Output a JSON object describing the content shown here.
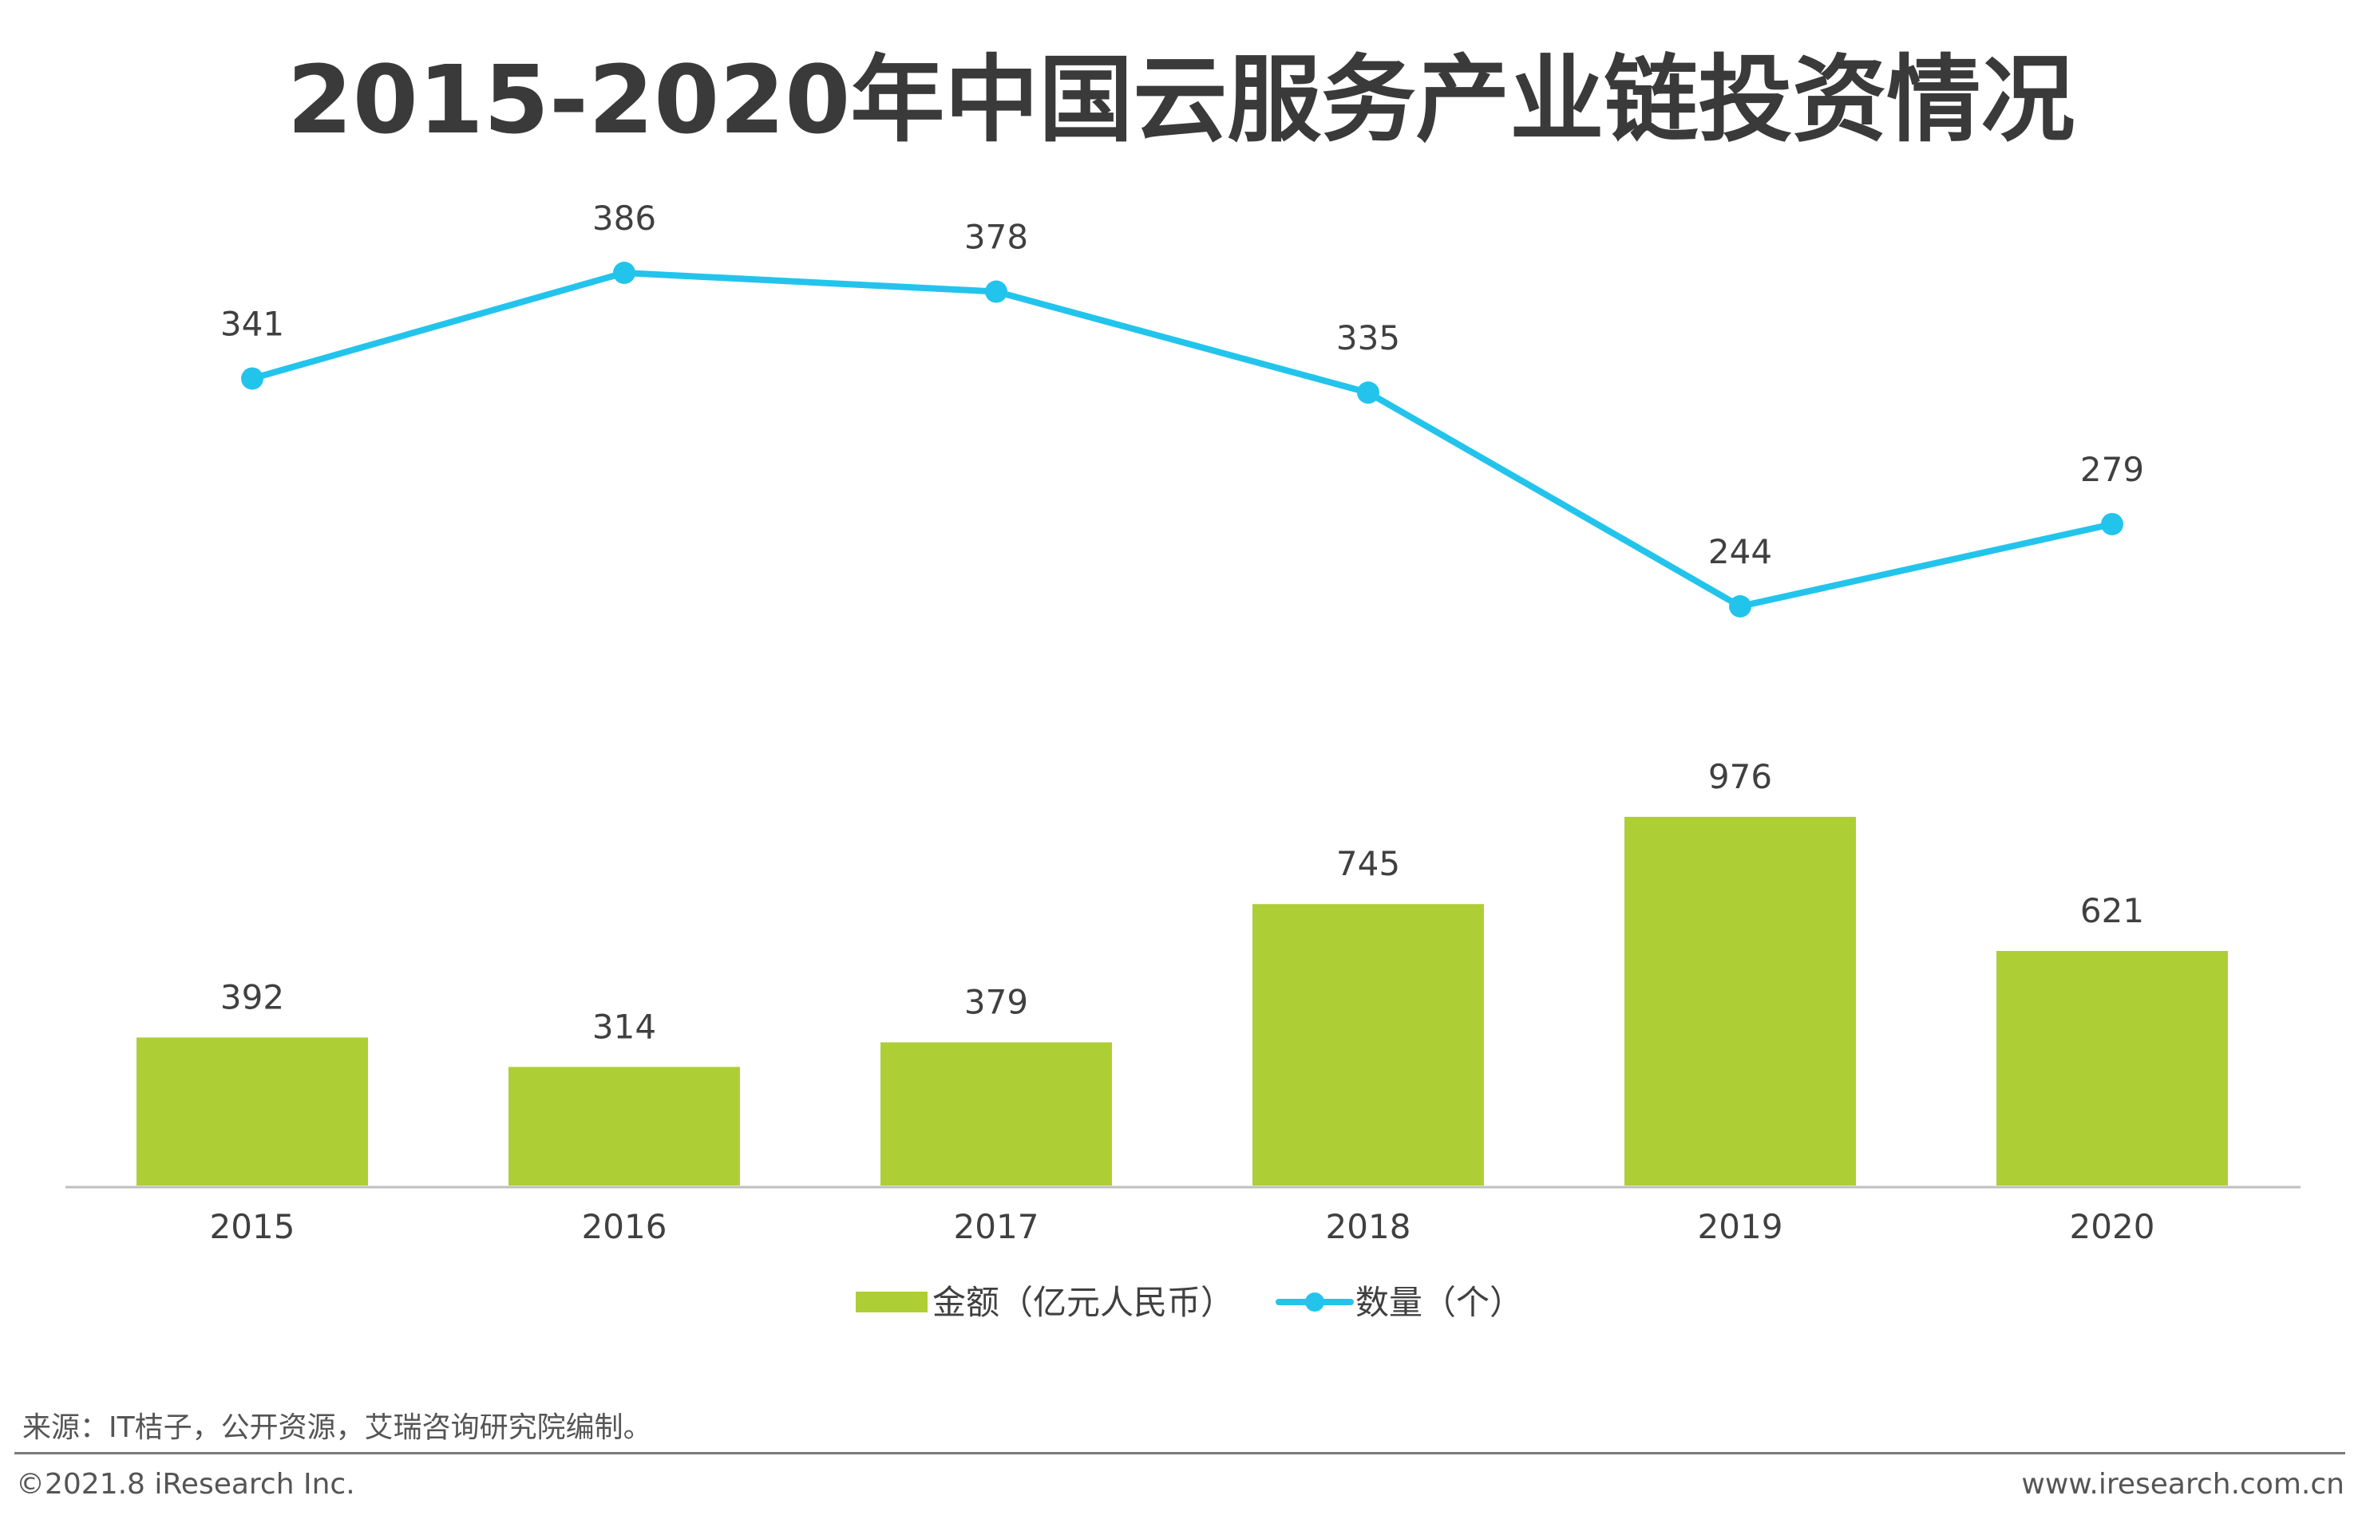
{
  "title": "2015-2020年中国云服务产业链投资情况",
  "chart_data": {
    "type": "bar",
    "categories": [
      "2015",
      "2016",
      "2017",
      "2018",
      "2019",
      "2020"
    ],
    "series": [
      {
        "name": "金额（亿元人民币）",
        "type": "bar",
        "values": [
          392,
          314,
          379,
          745,
          976,
          621
        ],
        "color": "#aece36"
      },
      {
        "name": "数量（个）",
        "type": "line",
        "values": [
          341,
          386,
          378,
          335,
          244,
          279
        ],
        "color": "#23c4ec"
      }
    ],
    "grid": false,
    "legend": "bottom-center"
  },
  "footer": {
    "source": "来源：IT桔子，公开资源，艾瑞咨询研究院编制。",
    "copyright": "©2021.8 iResearch Inc.",
    "website": "www.iresearch.com.cn"
  }
}
